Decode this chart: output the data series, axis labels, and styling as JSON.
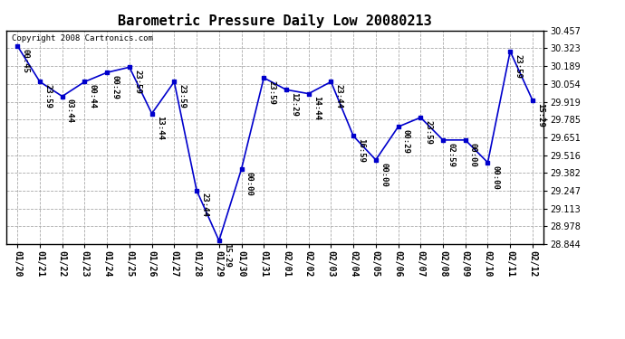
{
  "title": "Barometric Pressure Daily Low 20080213",
  "copyright_text": "Copyright 2008 Cartronics.com",
  "dates": [
    "01/20",
    "01/21",
    "01/22",
    "01/23",
    "01/24",
    "01/25",
    "01/26",
    "01/27",
    "01/28",
    "01/29",
    "01/30",
    "01/31",
    "02/01",
    "02/02",
    "02/03",
    "02/04",
    "02/05",
    "02/06",
    "02/07",
    "02/08",
    "02/09",
    "02/10",
    "02/11",
    "02/12"
  ],
  "values": [
    30.34,
    30.07,
    29.96,
    30.07,
    30.14,
    30.18,
    29.83,
    30.07,
    29.25,
    28.87,
    29.41,
    30.1,
    30.01,
    29.98,
    30.07,
    29.66,
    29.48,
    29.73,
    29.8,
    29.63,
    29.63,
    29.46,
    30.3,
    29.93
  ],
  "point_labels": [
    "00:45",
    "23:59",
    "03:44",
    "00:44",
    "00:29",
    "23:59",
    "13:44",
    "23:59",
    "23:44",
    "15:29",
    "00:00",
    "23:59",
    "12:29",
    "14:44",
    "23:44",
    "16:59",
    "00:00",
    "00:29",
    "23:59",
    "02:59",
    "00:00",
    "00:00",
    "23:59",
    "15:29"
  ],
  "ylim_min": 28.844,
  "ylim_max": 30.457,
  "yticks": [
    28.844,
    28.978,
    29.113,
    29.247,
    29.382,
    29.516,
    29.651,
    29.785,
    29.919,
    30.054,
    30.189,
    30.323,
    30.457
  ],
  "line_color": "#0000cc",
  "marker_color": "#0000cc",
  "background_color": "#ffffff",
  "grid_color": "#aaaaaa",
  "title_fontsize": 11,
  "label_fontsize": 6.5,
  "tick_fontsize": 7,
  "copyright_fontsize": 6.5
}
